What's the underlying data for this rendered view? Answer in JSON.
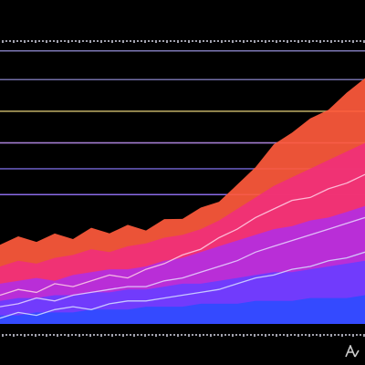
{
  "chart_data": {
    "type": "area",
    "title": "",
    "xlabel": "",
    "ylabel": "",
    "ylim": [
      0,
      100
    ],
    "grid": true,
    "x_points": 21,
    "layers": [
      {
        "color": "#ff5a3c",
        "values": [
          28,
          30,
          29,
          31,
          30,
          33,
          32,
          34,
          33,
          36,
          37,
          40,
          43,
          48,
          55,
          62,
          67,
          71,
          75,
          80,
          86
        ]
      },
      {
        "color": "#f0307a",
        "values": [
          20,
          22,
          21,
          23,
          24,
          26,
          25,
          27,
          28,
          30,
          31,
          33,
          36,
          40,
          44,
          48,
          51,
          54,
          57,
          60,
          63
        ]
      },
      {
        "color": "#b42ee0",
        "values": [
          14,
          15,
          16,
          15,
          17,
          18,
          19,
          19,
          20,
          22,
          23,
          25,
          27,
          29,
          31,
          33,
          34,
          36,
          37,
          39,
          41
        ]
      },
      {
        "color": "#6a3dff",
        "values": [
          8,
          9,
          9,
          10,
          10,
          11,
          11,
          12,
          12,
          13,
          14,
          14,
          15,
          16,
          17,
          18,
          18,
          19,
          20,
          21,
          22
        ]
      },
      {
        "color": "#2f4cff",
        "values": [
          3,
          3,
          4,
          4,
          4,
          5,
          5,
          5,
          6,
          6,
          6,
          7,
          7,
          7,
          8,
          8,
          8,
          9,
          9,
          9,
          10
        ]
      }
    ],
    "trend_lines": [
      {
        "color": "#ffd1e6",
        "values": [
          10,
          12,
          11,
          14,
          13,
          15,
          17,
          16,
          19,
          21,
          24,
          26,
          30,
          33,
          37,
          40,
          43,
          44,
          47,
          49,
          52
        ]
      },
      {
        "color": "#e8d6ff",
        "values": [
          6,
          7,
          9,
          8,
          10,
          11,
          12,
          13,
          13,
          15,
          16,
          18,
          20,
          22,
          25,
          27,
          29,
          31,
          33,
          35,
          37
        ]
      },
      {
        "color": "#d6e0ff",
        "values": [
          2,
          4,
          3,
          5,
          6,
          5,
          7,
          8,
          8,
          9,
          10,
          11,
          12,
          14,
          16,
          17,
          19,
          20,
          22,
          23,
          25
        ]
      }
    ],
    "gridlines": [
      {
        "y": 95,
        "color": "#8a84c8"
      },
      {
        "y": 85,
        "color": "#7f7ab9"
      },
      {
        "y": 74,
        "color": "#c7b56a"
      },
      {
        "y": 63,
        "color": "#b58ae6"
      },
      {
        "y": 54,
        "color": "#6f62c9"
      },
      {
        "y": 45,
        "color": "#9a76ff"
      }
    ],
    "tick_rows": [
      "top",
      "bottom"
    ]
  },
  "colors": {
    "background": "#000000"
  }
}
